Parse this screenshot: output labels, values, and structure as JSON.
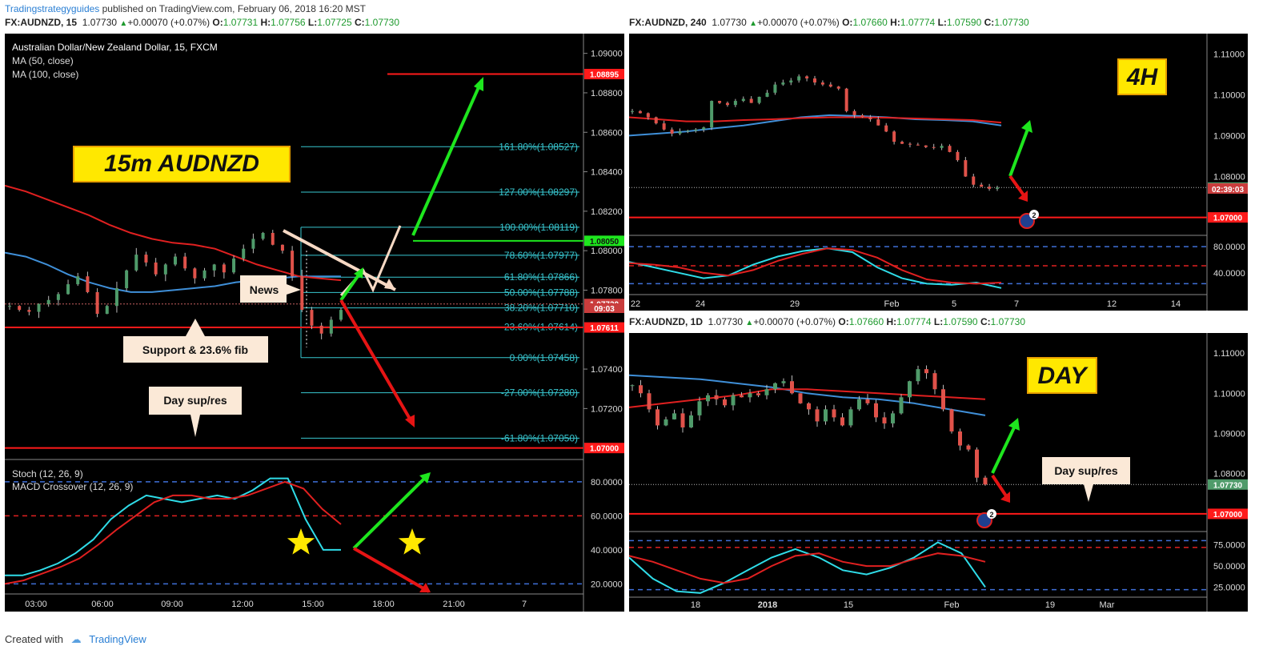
{
  "header": {
    "author": "Tradingstrategyguides",
    "rest": " published on TradingView.com, February 06, 2018 16:20 MST"
  },
  "pane15": {
    "symbol": "FX:AUDNZD, 15",
    "price": "1.07730",
    "change": "+0.00070 (+0.07%)",
    "o": "1.07731",
    "h": "1.07756",
    "l": "1.07725",
    "c": "1.07730",
    "legend1": "Australian Dollar/New Zealand Dollar, 15, FXCM",
    "legend2": "MA (50, close)",
    "legend3": "MA (100, close)",
    "label": "15m AUDNZD",
    "news": "News",
    "support": "Support & 23.6% fib",
    "dayres": "Day sup/res",
    "ind1": "Stoch (12, 26, 9)",
    "ind2": "MACD Crossover (12, 26, 9)",
    "countdown": "09:03"
  },
  "pane4h": {
    "symbol": "FX:AUDNZD, 240",
    "price": "1.07730",
    "change": "+0.00070 (+0.07%)",
    "o": "1.07660",
    "h": "1.07774",
    "l": "1.07590",
    "c": "1.07730",
    "label": "4H",
    "countdown": "02:39:03",
    "event": "2"
  },
  "paneD": {
    "symbol": "FX:AUDNZD, 1D",
    "price": "1.07730",
    "change": "+0.00070 (+0.07%)",
    "o": "1.07660",
    "h": "1.07774",
    "l": "1.07590",
    "c": "1.07730",
    "label": "DAY",
    "dayres": "Day sup/res",
    "event": "2"
  },
  "footer": {
    "created": "Created with",
    "brand": "TradingView"
  },
  "colors": {
    "bg": "#000000",
    "ma50": "#3f8fd8",
    "ma100": "#e02020",
    "up": "#4f9b6a",
    "down": "#e0524a",
    "fib": "#38c7d0",
    "level": "#ff1a1a",
    "green_arrow": "#1ee61e",
    "label_bg": "#ffe800"
  },
  "chart_data": [
    {
      "type": "line",
      "title": "FX:AUDNZD, 15 (candlestick)",
      "x_ticks": [
        "03:00",
        "06:00",
        "09:00",
        "12:00",
        "15:00",
        "18:00",
        "21:00",
        "7"
      ],
      "y_ticks": [
        "1.09000",
        "1.08800",
        "1.08600",
        "1.08400",
        "1.08200",
        "1.08000",
        "1.07800",
        "1.07400",
        "1.07200"
      ],
      "ylim": [
        1.0695,
        1.091
      ],
      "levels": [
        {
          "name": "1.08895",
          "value": 1.08895
        },
        {
          "name": "1.08050",
          "value": 1.0805
        },
        {
          "name": "1.07730",
          "value": 1.0773
        },
        {
          "name": "1.07611",
          "value": 1.07611
        },
        {
          "name": "1.07000",
          "value": 1.07
        }
      ],
      "fib": [
        {
          "label": "161.80%(1.08527)",
          "value": 1.08527
        },
        {
          "label": "127.00%(1.08297)",
          "value": 1.08297
        },
        {
          "label": "100.00%(1.08119)",
          "value": 1.08119
        },
        {
          "label": "78.60%(1.07977)",
          "value": 1.07977
        },
        {
          "label": "61.80%(1.07866)",
          "value": 1.07866
        },
        {
          "label": "50.00%(1.07788)",
          "value": 1.07788
        },
        {
          "label": "38.20%(1.07710)",
          "value": 1.0771
        },
        {
          "label": "23.60%(1.07614)",
          "value": 1.07614
        },
        {
          "label": "0.00%(1.07458)",
          "value": 1.07458
        },
        {
          "label": "-27.00%(1.07280)",
          "value": 1.0728
        },
        {
          "label": "-61.80%(1.07050)",
          "value": 1.0705
        }
      ],
      "ma50": [
        1.0799,
        1.0797,
        1.0793,
        1.0788,
        1.0784,
        1.0781,
        1.0779,
        1.0779,
        1.078,
        1.0781,
        1.0782,
        1.0784,
        1.0785,
        1.0786,
        1.0787,
        1.0787,
        1.0787
      ],
      "ma100": [
        1.0833,
        1.083,
        1.0826,
        1.0822,
        1.0818,
        1.0813,
        1.0809,
        1.0806,
        1.0804,
        1.0803,
        1.0801,
        1.0797,
        1.0793,
        1.079,
        1.0787,
        1.0786,
        1.0785
      ],
      "indicator": {
        "y_ticks": [
          "80.0000",
          "60.0000",
          "40.0000",
          "20.0000"
        ],
        "ylim": [
          15,
          87
        ],
        "stoch": [
          25,
          25,
          28,
          32,
          38,
          46,
          58,
          66,
          72,
          70,
          68,
          70,
          72,
          70,
          75,
          82,
          82,
          58,
          40,
          40
        ],
        "macd": [
          20,
          22,
          26,
          30,
          35,
          43,
          52,
          60,
          68,
          72,
          72,
          70,
          70,
          72,
          76,
          80,
          76,
          64,
          55
        ]
      }
    },
    {
      "type": "line",
      "title": "FX:AUDNZD, 240 (candlestick)",
      "x_ticks": [
        "22",
        "24",
        "29",
        "Feb",
        "5",
        "7",
        "12",
        "14"
      ],
      "y_ticks": [
        "1.11000",
        "1.10000",
        "1.09000",
        "1.08000"
      ],
      "ylim": [
        1.066,
        1.113
      ],
      "levels": [
        {
          "name": "1.07730",
          "value": 1.0773
        },
        {
          "name": "1.07000",
          "value": 1.07
        }
      ],
      "ma_blue": [
        1.09,
        1.0905,
        1.091,
        1.0918,
        1.0925,
        1.0935,
        1.0945,
        1.095,
        1.0948,
        1.0945,
        1.094,
        1.0938,
        1.0935,
        1.0925
      ],
      "ma_red": [
        1.0945,
        1.094,
        1.0935,
        1.0935,
        1.0938,
        1.094,
        1.0943,
        1.0945,
        1.0945,
        1.0944,
        1.0942,
        1.094,
        1.0938,
        1.0932
      ],
      "indicator": {
        "y_ticks": [
          "80.0000",
          "40.0000"
        ],
        "ylim": [
          0,
          100
        ],
        "stoch": [
          60,
          50,
          40,
          30,
          35,
          55,
          70,
          80,
          85,
          78,
          50,
          30,
          20,
          18,
          22,
          12
        ],
        "macd": [
          58,
          55,
          50,
          40,
          35,
          45,
          62,
          75,
          85,
          82,
          68,
          45,
          28,
          22,
          20,
          22
        ]
      }
    },
    {
      "type": "line",
      "title": "FX:AUDNZD, 1D (candlestick)",
      "x_ticks": [
        "18",
        "2018",
        "15",
        "Feb",
        "19",
        "Mar"
      ],
      "y_ticks": [
        "1.11000",
        "1.10000",
        "1.09000",
        "1.08000"
      ],
      "ylim": [
        1.066,
        1.113
      ],
      "levels": [
        {
          "name": "1.07730",
          "value": 1.0773
        },
        {
          "name": "1.07000",
          "value": 1.07
        }
      ],
      "ma_blue": [
        1.1045,
        1.104,
        1.1035,
        1.1025,
        1.1015,
        1.1,
        1.099,
        1.0985,
        1.0975,
        1.096,
        1.0945
      ],
      "ma_red": [
        1.0965,
        1.0975,
        1.0985,
        1.0995,
        1.101,
        1.101,
        1.1005,
        1.1,
        1.0995,
        1.099,
        1.0985
      ],
      "indicator": {
        "y_ticks": [
          "75.0000",
          "50.0000",
          "25.0000"
        ],
        "ylim": [
          15,
          87
        ],
        "stoch": [
          60,
          35,
          20,
          18,
          30,
          45,
          60,
          70,
          60,
          45,
          40,
          48,
          60,
          78,
          65,
          25
        ],
        "macd": [
          62,
          55,
          45,
          35,
          30,
          35,
          50,
          62,
          65,
          55,
          50,
          50,
          58,
          65,
          62,
          55
        ]
      }
    }
  ]
}
